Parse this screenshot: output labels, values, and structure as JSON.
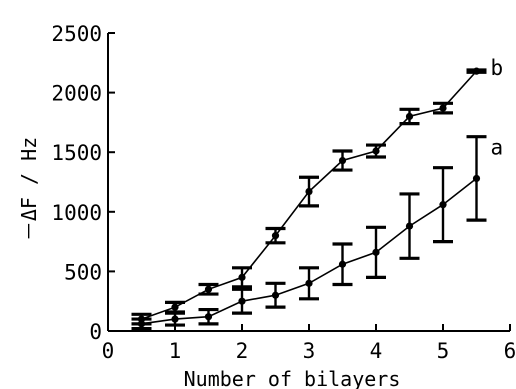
{
  "chart_data": {
    "type": "line",
    "title": "",
    "xlabel": "Number of bilayers",
    "ylabel": "－ΔF / Hz",
    "xlim": [
      0,
      6
    ],
    "ylim": [
      0,
      2500
    ],
    "xticks": [
      0,
      1,
      2,
      3,
      4,
      5,
      6
    ],
    "yticks": [
      0,
      500,
      1000,
      1500,
      2000,
      2500
    ],
    "grid": false,
    "series": [
      {
        "name": "b",
        "x": [
          0.5,
          1,
          1.5,
          2,
          2.5,
          3,
          3.5,
          4,
          4.5,
          5,
          5.5
        ],
        "y": [
          100,
          200,
          350,
          450,
          800,
          1170,
          1430,
          1510,
          1800,
          1870,
          2180
        ],
        "err": [
          40,
          40,
          40,
          80,
          60,
          120,
          80,
          50,
          60,
          40,
          10
        ]
      },
      {
        "name": "a",
        "x": [
          0.5,
          1,
          1.5,
          2,
          2.5,
          3,
          3.5,
          4,
          4.5,
          5,
          5.5
        ],
        "y": [
          60,
          100,
          120,
          250,
          300,
          400,
          560,
          660,
          880,
          1060,
          1280
        ],
        "err": [
          40,
          50,
          60,
          100,
          100,
          130,
          170,
          210,
          270,
          310,
          350
        ]
      }
    ]
  }
}
